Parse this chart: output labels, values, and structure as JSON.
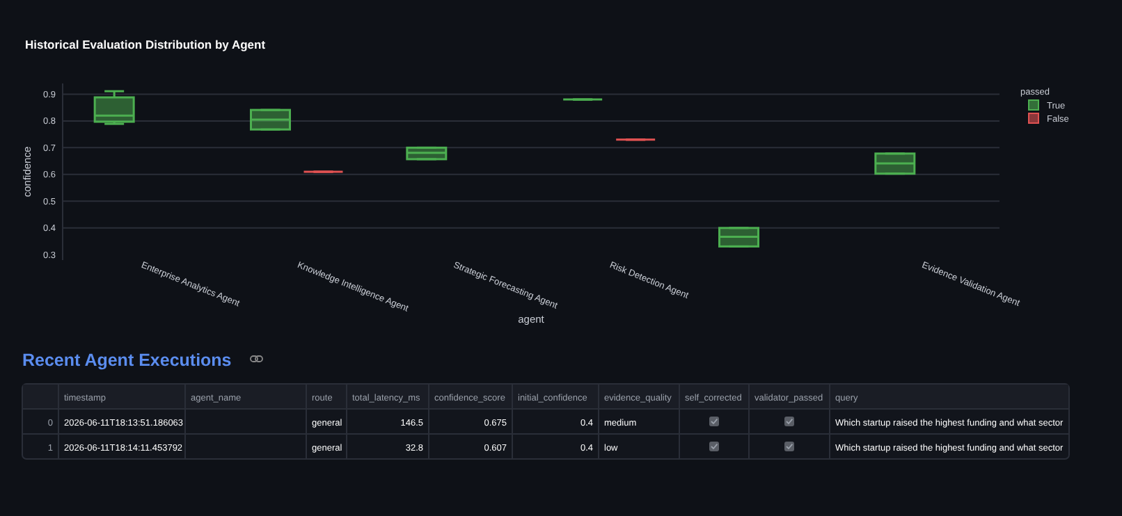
{
  "chart_data": [
    {
      "type": "box",
      "title": "Historical Evaluation Distribution by Agent",
      "xlabel": "agent",
      "ylabel": "confidence",
      "legend_title": "passed",
      "legend": "top right",
      "grid": "y",
      "categories": [
        "Enterprise Analytics Agent",
        "Knowledge Intelligence Agent",
        "Strategic Forecasting Agent",
        "Risk Detection Agent",
        null,
        "Evidence Validation Agent"
      ],
      "ylim": [
        0.28,
        0.94
      ],
      "yticks": [
        0.3,
        0.4,
        0.5,
        0.6,
        0.7,
        0.8,
        0.9
      ],
      "series": [
        {
          "name": "True",
          "color": "#4caf50",
          "boxes": [
            {
              "low": 0.789,
              "q1": 0.797,
              "median": 0.82,
              "q3": 0.888,
              "high": 0.911
            },
            {
              "low": 0.768,
              "q1": 0.768,
              "median": 0.805,
              "q3": 0.841,
              "high": 0.841
            },
            {
              "low": 0.657,
              "q1": 0.657,
              "median": 0.681,
              "q3": 0.7,
              "high": 0.7
            },
            {
              "low": 0.88,
              "q1": 0.88,
              "median": 0.88,
              "q3": 0.88,
              "high": 0.88
            },
            {
              "low": 0.331,
              "q1": 0.331,
              "median": 0.367,
              "q3": 0.4,
              "high": 0.4
            },
            {
              "low": 0.603,
              "q1": 0.603,
              "median": 0.641,
              "q3": 0.678,
              "high": 0.678
            }
          ]
        },
        {
          "name": "False",
          "color": "#e05252",
          "boxes": [
            null,
            {
              "low": 0.61,
              "q1": 0.61,
              "median": 0.61,
              "q3": 0.61,
              "high": 0.61
            },
            null,
            {
              "low": 0.73,
              "q1": 0.73,
              "median": 0.73,
              "q3": 0.73,
              "high": 0.73
            },
            null,
            null
          ]
        }
      ]
    },
    {
      "type": "other",
      "title": "Recent Agent Executions",
      "categories": [
        null,
        "timestamp",
        "agent_name",
        "route",
        "total_latency_ms",
        "confidence_score",
        "initial_confidence",
        "evidence_quality",
        "self_corrected",
        "validator_passed",
        "query"
      ],
      "cell_labels": [
        [
          "0",
          "2026-06-11T18:13:51.186063",
          null,
          "general",
          "146.5",
          "0.675",
          "0.4",
          "medium",
          true,
          true,
          "Which startup raised the highest funding and what sector"
        ],
        [
          "1",
          "2026-06-11T18:14:11.453792",
          null,
          "general",
          "32.8",
          "0.607",
          "0.4",
          "low",
          true,
          true,
          "Which startup raised the highest funding and what sector"
        ]
      ]
    }
  ]
}
